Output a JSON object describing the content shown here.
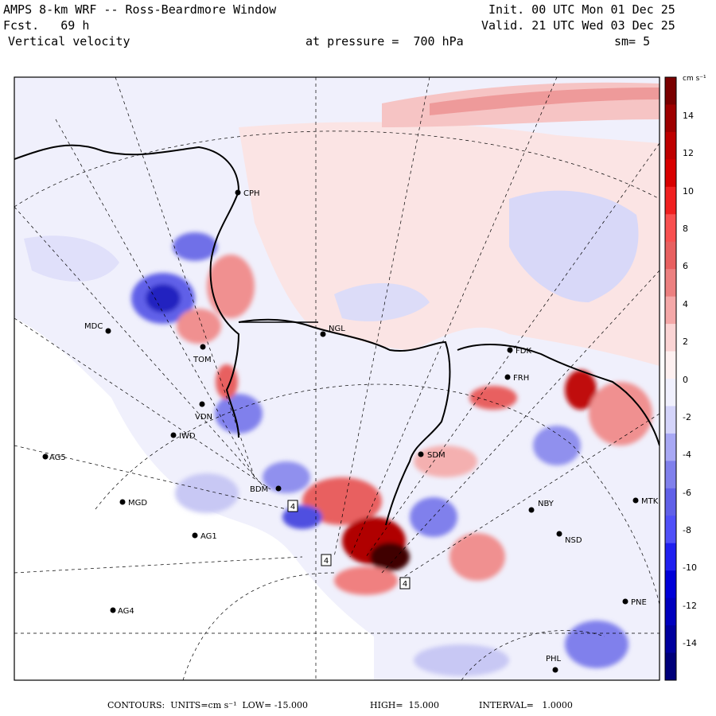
{
  "header": {
    "model": "AMPS 8-km WRF -- Ross-Beardmore Window",
    "fcst": "Fcst.   69 h",
    "field": "Vertical velocity",
    "init": "Init. 00 UTC Mon 01 Dec 25",
    "valid": "Valid. 21 UTC Wed 03 Dec 25",
    "pressure": "at pressure =  700 hPa",
    "smooth": "sm= 5"
  },
  "colorbar": {
    "units": "cm s⁻¹",
    "labels": [
      "14",
      "12",
      "10",
      "8",
      "6",
      "4",
      "2",
      "0",
      "-2",
      "-4",
      "-6",
      "-8",
      "-10",
      "-12",
      "-14"
    ],
    "colors": [
      "#7a0000",
      "#9e0000",
      "#be0000",
      "#d80000",
      "#f02020",
      "#f85050",
      "#e86060",
      "#ec8080",
      "#f4a8a8",
      "#fad4d4",
      "#fdf0f0",
      "#f0f0fd",
      "#d4d4fa",
      "#a8a8f4",
      "#8080ec",
      "#6060e8",
      "#5050f8",
      "#2020f0",
      "#0000d8",
      "#0000be",
      "#00009e",
      "#00007a"
    ]
  },
  "stations": [
    {
      "name": "CPH"
    },
    {
      "name": "MDC"
    },
    {
      "name": "NGL"
    },
    {
      "name": "TOM"
    },
    {
      "name": "FDK"
    },
    {
      "name": "FRH"
    },
    {
      "name": "VDN"
    },
    {
      "name": "IWD"
    },
    {
      "name": "AG5"
    },
    {
      "name": "SDM"
    },
    {
      "name": "BDM"
    },
    {
      "name": "MGD"
    },
    {
      "name": "NBY"
    },
    {
      "name": "MTK"
    },
    {
      "name": "AG1"
    },
    {
      "name": "NSD"
    },
    {
      "name": "AG4"
    },
    {
      "name": "PNE"
    },
    {
      "name": "PHL"
    }
  ],
  "map_marks": [
    "4",
    "4",
    "4"
  ],
  "footer": {
    "contours": "CONTOURS:  UNITS=cm s⁻¹  LOW= -15.000",
    "high": "HIGH=  15.000",
    "interval": "INTERVAL=   1.0000"
  }
}
